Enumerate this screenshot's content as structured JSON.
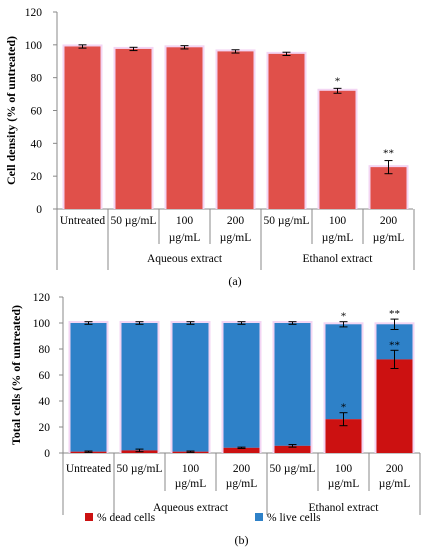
{
  "chart_data": [
    {
      "type": "bar",
      "panel_label": "(a)",
      "ylabel": "Cell density (% of untreated)",
      "ylim": [
        0,
        120
      ],
      "yticks": [
        "0",
        "20",
        "40",
        "60",
        "80",
        "100",
        "120"
      ],
      "categories": [
        [
          "Untreated"
        ],
        [
          "50 µg/mL"
        ],
        [
          "100",
          "µg/mL"
        ],
        [
          "200",
          "µg/mL"
        ],
        [
          "50 µg/mL"
        ],
        [
          "100",
          "µg/mL"
        ],
        [
          "200",
          "µg/mL"
        ]
      ],
      "groups": [
        {
          "label": "Aqueous extract",
          "from": 1,
          "to": 3
        },
        {
          "label": "Ethanol extract",
          "from": 4,
          "to": 6
        }
      ],
      "series": [
        {
          "values": [
            99,
            97.5,
            98.5,
            96,
            94.5,
            72,
            25.5
          ],
          "errors": [
            1,
            1,
            1,
            1,
            1,
            1.5,
            4
          ],
          "color": "#e0504a"
        }
      ],
      "annotations": [
        "",
        "",
        "",
        "",
        "",
        "*",
        "**"
      ]
    },
    {
      "type": "bar",
      "stacked": true,
      "panel_label": "(b)",
      "ylabel": "Total cells (% of untreated)",
      "ylim": [
        0,
        120
      ],
      "yticks": [
        "0",
        "20",
        "40",
        "60",
        "80",
        "100",
        "120"
      ],
      "categories": [
        [
          "Untreated"
        ],
        [
          "50 µg/mL"
        ],
        [
          "100",
          "µg/mL"
        ],
        [
          "200",
          "µg/mL"
        ],
        [
          "50 µg/mL"
        ],
        [
          "100",
          "µg/mL"
        ],
        [
          "200",
          "µg/mL"
        ]
      ],
      "groups": [
        {
          "label": "Aqueous extract",
          "from": 1,
          "to": 3
        },
        {
          "label": "Ethanol extract",
          "from": 4,
          "to": 6
        }
      ],
      "series": [
        {
          "name": "% dead cells",
          "values": [
            1,
            2,
            1,
            4,
            5.5,
            26,
            72
          ],
          "errors": [
            0.5,
            1,
            0.5,
            0.5,
            1,
            5,
            7
          ],
          "color": "#cc1111"
        },
        {
          "name": "% live cells",
          "values": [
            99,
            98,
            99,
            96,
            94.5,
            73,
            27
          ],
          "errors": [
            1,
            1,
            1,
            1,
            1,
            2,
            4
          ],
          "color": "#2e81c8"
        }
      ],
      "annotations_live": [
        "",
        "",
        "",
        "",
        "",
        "*",
        "**"
      ],
      "annotations_dead": [
        "",
        "",
        "",
        "",
        "",
        "*",
        "**"
      ],
      "legend_position": "bottom"
    }
  ]
}
